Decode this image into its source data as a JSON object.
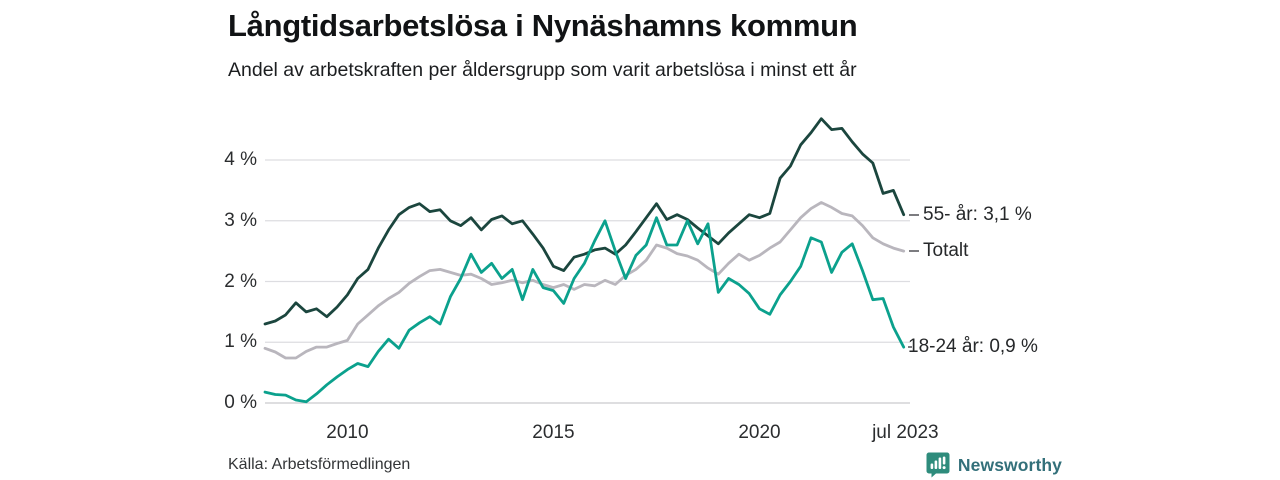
{
  "header": {
    "title": "Långtidsarbetslösa i Nynäshamns kommun",
    "subtitle": "Andel av arbetskraften per åldersgrupp som varit arbetslösa i minst ett år"
  },
  "footer": {
    "source": "Källa: Arbetsförmedlingen",
    "brand": "Newsworthy",
    "brand_color": "#33707a",
    "brand_icon": "newsworthy-bubble-barchart-icon",
    "brand_icon_color": "#2e8c7c"
  },
  "colors": {
    "grid": "#dddde1",
    "grid_zero": "#c9c9cd",
    "text": "#2b2d2f"
  },
  "chart_data": {
    "type": "line",
    "title": "Långtidsarbetslösa i Nynäshamns kommun",
    "subtitle": "Andel av arbetskraften per åldersgrupp som varit arbetslösa i minst ett år",
    "source": "Källa: Arbetsförmedlingen",
    "xlabel": "",
    "ylabel": "",
    "grid": "horizontal",
    "legend_position": "right-end-labels",
    "x_range": [
      2008,
      2023.58
    ],
    "ylim": [
      0,
      4.8
    ],
    "yticks": [
      {
        "value": 0,
        "label": "0 %"
      },
      {
        "value": 1,
        "label": "1 %"
      },
      {
        "value": 2,
        "label": "2 %"
      },
      {
        "value": 3,
        "label": "3 %"
      },
      {
        "value": 4,
        "label": "4 %"
      }
    ],
    "xticks": [
      {
        "value": 2010,
        "label": "2010"
      },
      {
        "value": 2015,
        "label": "2015"
      },
      {
        "value": 2020,
        "label": "2020"
      },
      {
        "value": 2023.54,
        "label": "jul 2023"
      }
    ],
    "x": [
      2008,
      2008.25,
      2008.5,
      2008.75,
      2009,
      2009.25,
      2009.5,
      2009.75,
      2010,
      2010.25,
      2010.5,
      2010.75,
      2011,
      2011.25,
      2011.5,
      2011.75,
      2012,
      2012.25,
      2012.5,
      2012.75,
      2013,
      2013.25,
      2013.5,
      2013.75,
      2014,
      2014.25,
      2014.5,
      2014.75,
      2015,
      2015.25,
      2015.5,
      2015.75,
      2016,
      2016.25,
      2016.5,
      2016.75,
      2017,
      2017.25,
      2017.5,
      2017.75,
      2018,
      2018.25,
      2018.5,
      2018.75,
      2019,
      2019.25,
      2019.5,
      2019.75,
      2020,
      2020.25,
      2020.5,
      2020.75,
      2021,
      2021.25,
      2021.5,
      2021.75,
      2022,
      2022.25,
      2022.5,
      2022.75,
      2023,
      2023.25,
      2023.5
    ],
    "series": [
      {
        "name": "Totalt",
        "end_label": "Totalt",
        "end_value": "2,5 %",
        "color": "#b9b6bd",
        "values": [
          0.9,
          0.84,
          0.74,
          0.74,
          0.85,
          0.92,
          0.92,
          0.98,
          1.03,
          1.3,
          1.45,
          1.6,
          1.72,
          1.82,
          1.97,
          2.08,
          2.18,
          2.2,
          2.15,
          2.1,
          2.12,
          2.05,
          1.95,
          1.98,
          2.02,
          1.98,
          2.02,
          1.95,
          1.9,
          1.95,
          1.87,
          1.95,
          1.93,
          2.02,
          1.95,
          2.1,
          2.2,
          2.35,
          2.6,
          2.55,
          2.46,
          2.42,
          2.35,
          2.22,
          2.12,
          2.3,
          2.45,
          2.35,
          2.43,
          2.55,
          2.65,
          2.85,
          3.05,
          3.2,
          3.3,
          3.22,
          3.12,
          3.08,
          2.92,
          2.72,
          2.62,
          2.55,
          2.5
        ]
      },
      {
        "name": "55- år",
        "end_label": "55- år: 3,1 %",
        "end_value": "3,1 %",
        "color": "#1b463e",
        "values": [
          1.3,
          1.35,
          1.45,
          1.65,
          1.5,
          1.55,
          1.42,
          1.58,
          1.78,
          2.05,
          2.2,
          2.55,
          2.85,
          3.1,
          3.22,
          3.28,
          3.15,
          3.18,
          3.0,
          2.92,
          3.05,
          2.85,
          3.02,
          3.08,
          2.95,
          3.0,
          2.78,
          2.55,
          2.25,
          2.18,
          2.4,
          2.45,
          2.52,
          2.55,
          2.45,
          2.6,
          2.82,
          3.05,
          3.28,
          3.02,
          3.1,
          3.02,
          2.88,
          2.75,
          2.62,
          2.8,
          2.95,
          3.1,
          3.05,
          3.12,
          3.7,
          3.9,
          4.25,
          4.45,
          4.68,
          4.5,
          4.52,
          4.3,
          4.1,
          3.95,
          3.45,
          3.5,
          3.1
        ]
      },
      {
        "name": "18-24 år",
        "end_label": "18-24 år: 0,9 %",
        "end_value": "0,9 %",
        "color": "#0ba18d",
        "values": [
          0.18,
          0.14,
          0.13,
          0.05,
          0.02,
          0.15,
          0.3,
          0.43,
          0.55,
          0.65,
          0.6,
          0.85,
          1.05,
          0.9,
          1.2,
          1.32,
          1.42,
          1.3,
          1.75,
          2.05,
          2.45,
          2.15,
          2.3,
          2.05,
          2.2,
          1.7,
          2.2,
          1.9,
          1.85,
          1.64,
          2.05,
          2.3,
          2.67,
          3.0,
          2.5,
          2.05,
          2.43,
          2.6,
          3.05,
          2.6,
          2.6,
          3.0,
          2.62,
          2.95,
          1.82,
          2.05,
          1.95,
          1.8,
          1.55,
          1.46,
          1.78,
          2.0,
          2.25,
          2.72,
          2.65,
          2.15,
          2.48,
          2.62,
          2.18,
          1.7,
          1.72,
          1.25,
          0.92
        ]
      }
    ]
  }
}
